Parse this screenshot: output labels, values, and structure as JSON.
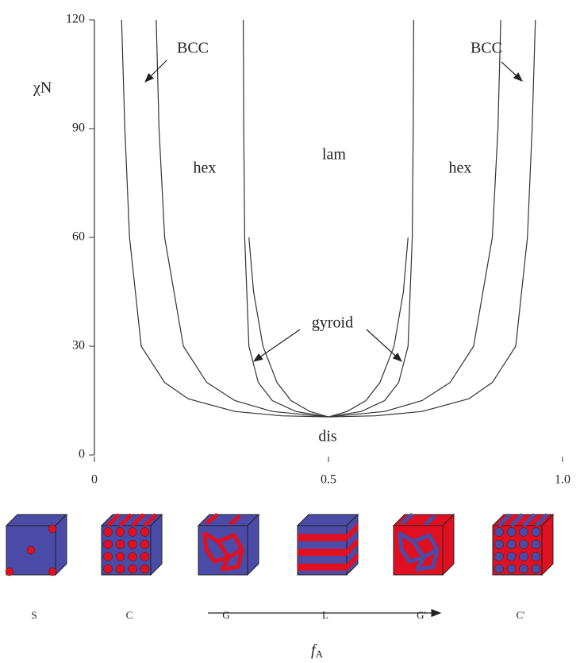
{
  "chart_data": {
    "type": "line",
    "y_label": "χN",
    "x_label": {
      "main": "f",
      "sub": "A"
    },
    "color": "#333333",
    "xlim": [
      0,
      1
    ],
    "ylim": [
      0,
      120
    ],
    "xticks": [
      0,
      0.5,
      {
        "value": 1,
        "label": "1.0"
      }
    ],
    "yticks": [
      0,
      30,
      60,
      90,
      120
    ],
    "series": [
      {
        "x": [
          0.058,
          0.065,
          0.075,
          0.1,
          0.15,
          0.2,
          0.3,
          0.4,
          0.5,
          0.6,
          0.7,
          0.8,
          0.85,
          0.9,
          0.925,
          0.935,
          0.942
        ],
        "values": [
          120,
          90,
          60,
          30,
          20,
          15.5,
          12,
          10.8,
          10.5,
          10.8,
          12,
          15.5,
          20,
          30,
          60,
          90,
          120
        ]
      },
      {
        "x": [
          0.132,
          0.138,
          0.15,
          0.19,
          0.24,
          0.3,
          0.38,
          0.5,
          0.62,
          0.7,
          0.76,
          0.81,
          0.85,
          0.862,
          0.868
        ],
        "values": [
          120,
          90,
          60,
          30,
          20,
          15,
          12,
          10.5,
          12,
          15,
          20,
          30,
          60,
          90,
          120
        ]
      },
      {
        "x": [
          0.318,
          0.319,
          0.321,
          0.33,
          0.35,
          0.38,
          0.43,
          0.5,
          0.57,
          0.62,
          0.65,
          0.67,
          0.679,
          0.681,
          0.682
        ],
        "values": [
          120,
          90,
          60,
          30,
          20,
          15,
          12,
          10.5,
          12,
          15,
          20,
          30,
          60,
          90,
          120
        ]
      },
      {
        "x": [
          0.33,
          0.34,
          0.36,
          0.39,
          0.42,
          0.46,
          0.5,
          0.54,
          0.58,
          0.61,
          0.64,
          0.66,
          0.67
        ],
        "values": [
          60,
          45,
          30,
          20,
          15,
          12,
          10.5,
          12,
          15,
          20,
          30,
          45,
          60
        ]
      }
    ],
    "annotations": [
      "BCC",
      "BCC",
      "hex",
      "lam",
      "hex",
      "gyroid",
      "dis"
    ],
    "structures": [
      "S",
      "C",
      "G",
      "L",
      "G'",
      "C'"
    ]
  }
}
